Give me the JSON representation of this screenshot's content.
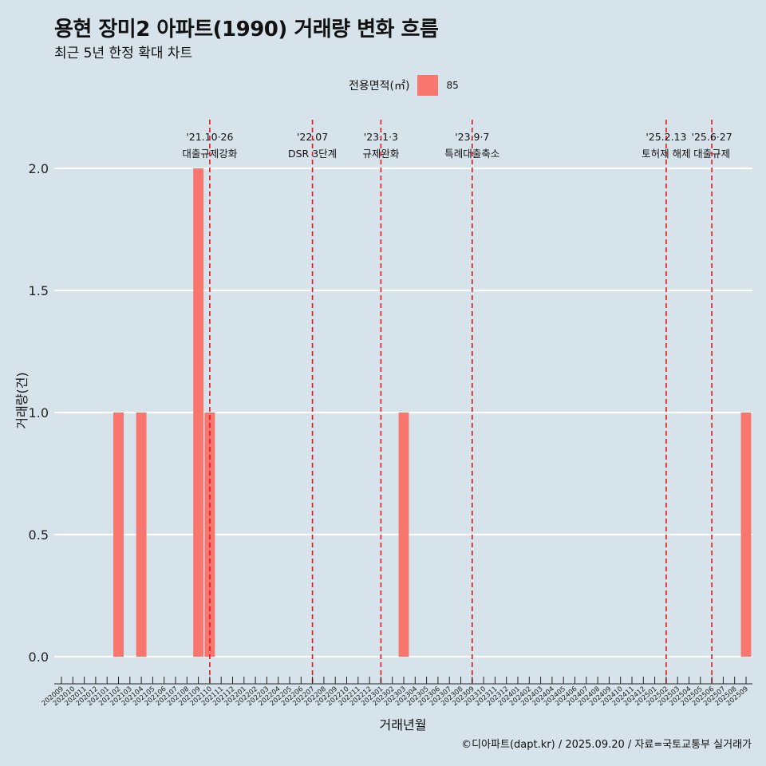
{
  "title": "용현 장미2 아파트(1990) 거래량 변화 흐름",
  "subtitle": "최근 5년 한정 확대 차트",
  "legend": {
    "title": "전용면적(㎡)",
    "items": [
      {
        "label": "85",
        "color": "#f8766d"
      }
    ]
  },
  "caption": "©디아파트(dapt.kr) / 2025.09.20 / 자료=국토교통부 실거래가",
  "colors": {
    "background": "#d6e3ea",
    "bar": "#f8766d",
    "event_line": "#e8141b",
    "grid": "#ffffff"
  },
  "chart_data": {
    "type": "bar",
    "xlabel": "거래년월",
    "ylabel": "거래량(건)",
    "ylim": [
      0,
      2
    ],
    "yticks": [
      "0.0",
      "0.5",
      "1.0",
      "1.5",
      "2.0"
    ],
    "grid": "horizontal",
    "legend_position": "top",
    "categories": [
      "202009",
      "202010",
      "202011",
      "202012",
      "202101",
      "202102",
      "202103",
      "202104",
      "202105",
      "202106",
      "202107",
      "202108",
      "202109",
      "202110",
      "202111",
      "202112",
      "202201",
      "202202",
      "202203",
      "202204",
      "202205",
      "202206",
      "202207",
      "202208",
      "202209",
      "202210",
      "202211",
      "202212",
      "202301",
      "202302",
      "202303",
      "202304",
      "202305",
      "202306",
      "202307",
      "202308",
      "202309",
      "202310",
      "202311",
      "202312",
      "202401",
      "202402",
      "202403",
      "202404",
      "202405",
      "202406",
      "202407",
      "202408",
      "202409",
      "202410",
      "202411",
      "202412",
      "202501",
      "202502",
      "202503",
      "202504",
      "202505",
      "202506",
      "202507",
      "202508",
      "202509"
    ],
    "series": [
      {
        "name": "85",
        "bars": [
          {
            "x": "202102",
            "y": 1
          },
          {
            "x": "202104",
            "y": 1
          },
          {
            "x": "202109",
            "y": 2
          },
          {
            "x": "202110",
            "y": 1
          },
          {
            "x": "202303",
            "y": 1
          },
          {
            "x": "202509",
            "y": 1
          }
        ]
      }
    ],
    "events": [
      {
        "x": "202110",
        "date": "'21.10·26",
        "label": "대출규제강화"
      },
      {
        "x": "202207",
        "date": "'22.07",
        "label": "DSR 3단계"
      },
      {
        "x": "202301",
        "date": "'23.1·3",
        "label": "규제완화"
      },
      {
        "x": "202309",
        "date": "'23.9·7",
        "label": "특례대출축소"
      },
      {
        "x": "202502",
        "date": "'25.2.13",
        "label": "토허제 해제"
      },
      {
        "x": "202506",
        "date": "'25.6·27",
        "label": "대출규제"
      }
    ]
  }
}
